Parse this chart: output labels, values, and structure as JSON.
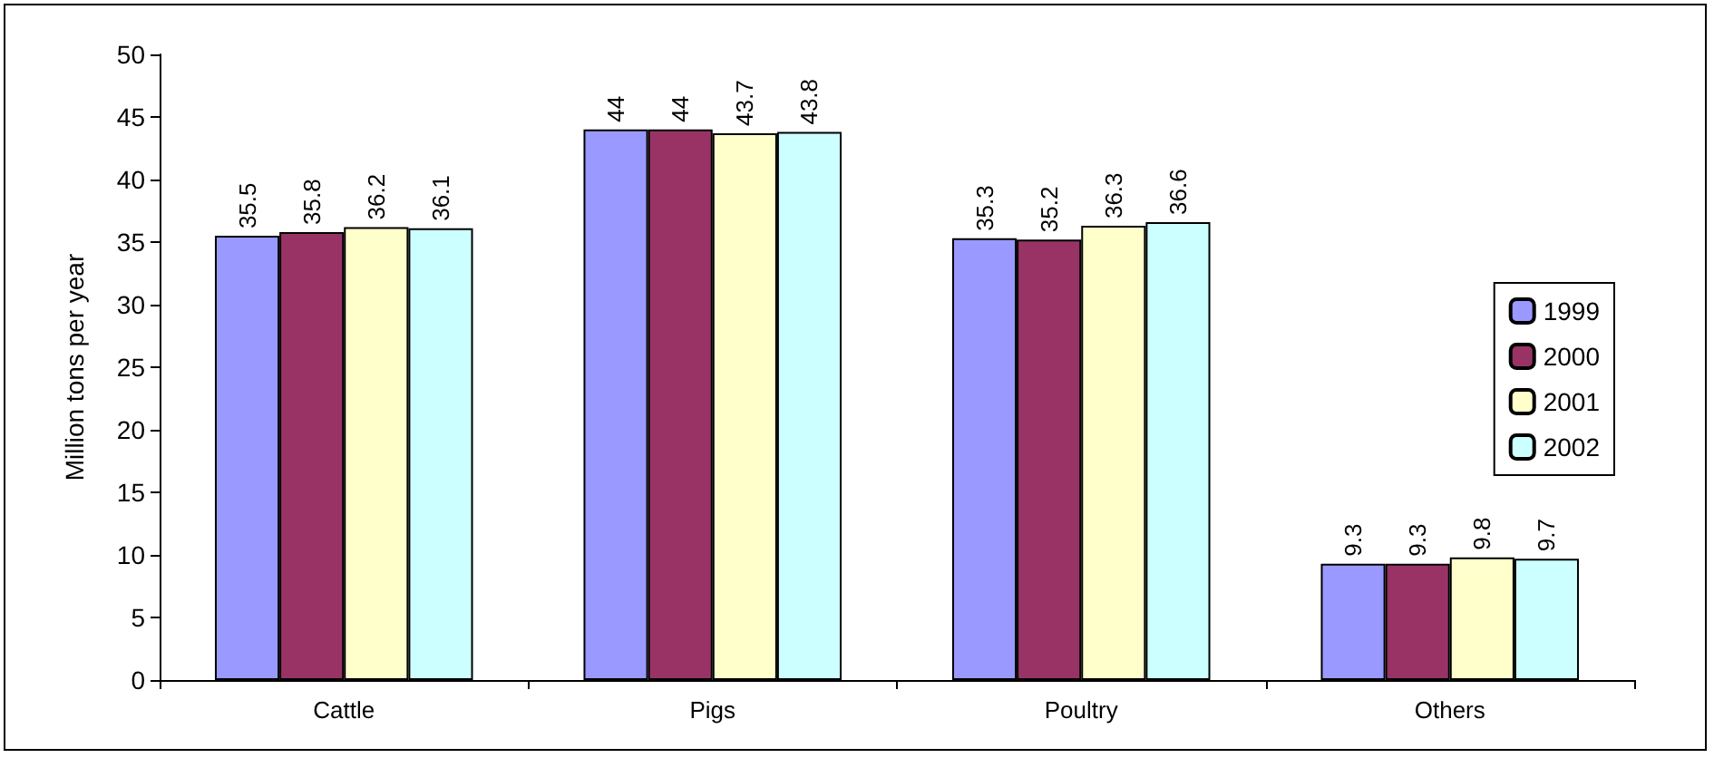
{
  "chart_data": {
    "type": "bar",
    "ylabel": "Million tons per year",
    "categories": [
      "Cattle",
      "Pigs",
      "Poultry",
      "Others"
    ],
    "series": [
      {
        "name": "1999",
        "color": "#9999ff",
        "values": [
          35.5,
          44,
          35.3,
          9.3
        ]
      },
      {
        "name": "2000",
        "color": "#993366",
        "values": [
          35.8,
          44,
          35.2,
          9.3
        ]
      },
      {
        "name": "2001",
        "color": "#ffffcc",
        "values": [
          36.2,
          43.7,
          36.3,
          9.8
        ]
      },
      {
        "name": "2002",
        "color": "#ccffff",
        "values": [
          36.1,
          43.8,
          36.6,
          9.7
        ]
      }
    ],
    "ylim": [
      0,
      50
    ],
    "yticks": [
      0,
      5,
      10,
      15,
      20,
      25,
      30,
      35,
      40,
      45,
      50
    ],
    "data_labels": true,
    "legend": "right",
    "grid": false
  }
}
